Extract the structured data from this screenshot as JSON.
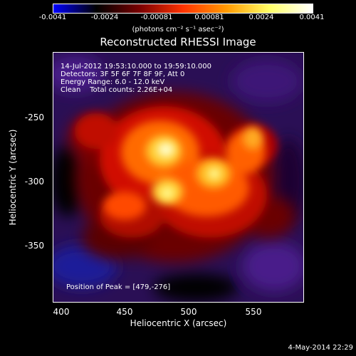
{
  "colorbar": {
    "ticks": [
      "-0.0041",
      "-0.0024",
      "-0.00081",
      "0.00081",
      "0.0024",
      "0.0041"
    ],
    "units": "(photons cm⁻² s⁻¹ asec⁻²)",
    "gradient": [
      "#0000ff",
      "#000000",
      "#7a0000",
      "#ff3300",
      "#ff9900",
      "#ffff66",
      "#ffffff"
    ]
  },
  "title": "Reconstructed RHESSI Image",
  "info": {
    "line1": "14-Jul-2012 19:53:10.000 to 19:59:10.000",
    "line2": "Detectors: 3F 5F 6F 7F 8F 9F, Att 0",
    "line3": "Energy Range: 6.0 - 12.0 keV",
    "line4": "Clean    Total counts: 2.26E+04",
    "peak": "Position of Peak = [479,-276]"
  },
  "axes": {
    "xlabel": "Heliocentric X (arcsec)",
    "ylabel": "Heliocentric Y (arcsec)",
    "xticks": [
      "400",
      "450",
      "500",
      "550"
    ],
    "yticks": [
      "-250",
      "-300",
      "-350"
    ]
  },
  "footer": "4-May-2014 22:29"
}
